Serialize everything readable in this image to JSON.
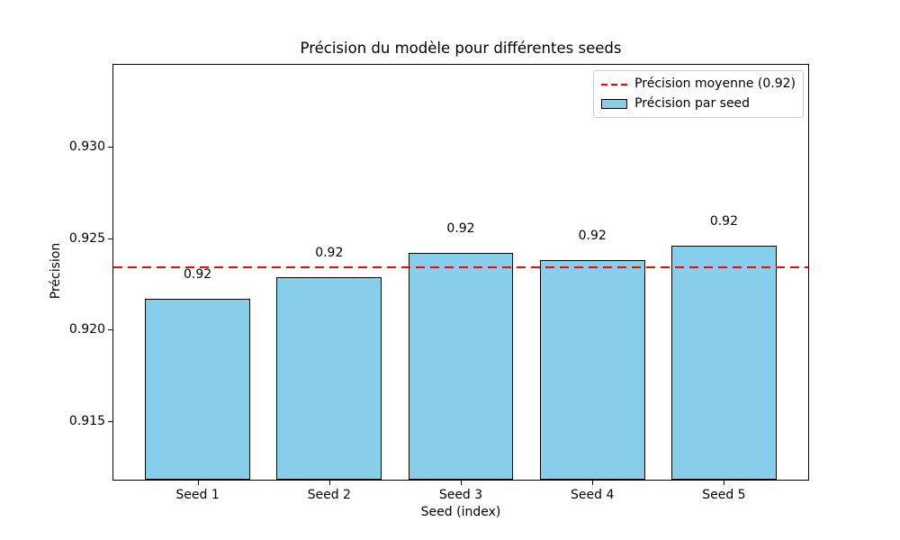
{
  "chart_data": {
    "type": "bar",
    "title": "Précision du modèle pour différentes seeds",
    "xlabel": "Seed (index)",
    "ylabel": "Précision",
    "categories": [
      "Seed 1",
      "Seed 2",
      "Seed 3",
      "Seed 4",
      "Seed 5"
    ],
    "values": [
      0.9217,
      0.9229,
      0.9242,
      0.9238,
      0.9246
    ],
    "bar_value_labels": [
      "0.92",
      "0.92",
      "0.92",
      "0.92",
      "0.92"
    ],
    "mean_line_value": 0.9234,
    "ylim": [
      0.9118,
      0.9345
    ],
    "yticks": [
      0.915,
      0.92,
      0.925,
      0.93
    ],
    "ytick_labels": [
      "0.915",
      "0.920",
      "0.925",
      "0.930"
    ],
    "legend": [
      "Précision moyenne (0.92)",
      "Précision par seed"
    ],
    "legend_position": "upper right",
    "grid": false,
    "colors": {
      "bar_fill": "#87CEEB",
      "bar_edge": "#000000",
      "mean_line": "#FF0000",
      "text": "#000000",
      "legend_border": "#CCCCCC"
    }
  }
}
